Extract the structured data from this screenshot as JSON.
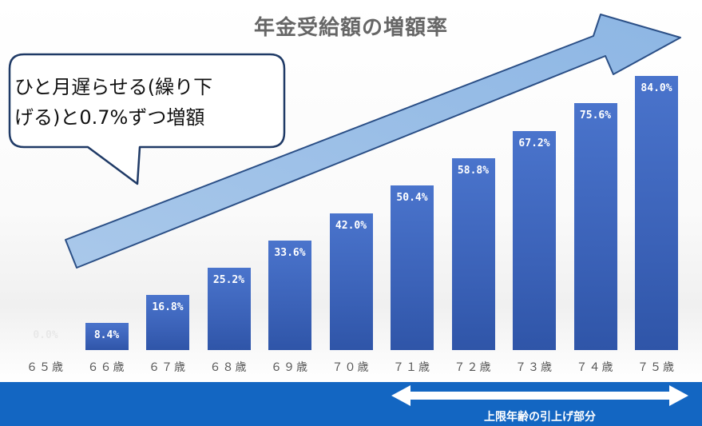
{
  "chart_data": {
    "type": "bar",
    "title": "年金受給額の増額率",
    "categories": [
      "６５歳",
      "６６歳",
      "６７歳",
      "６８歳",
      "６９歳",
      "７０歳",
      "７１歳",
      "７２歳",
      "７３歳",
      "７４歳",
      "７５歳"
    ],
    "values": [
      0.0,
      8.4,
      16.8,
      25.2,
      33.6,
      42.0,
      50.4,
      58.8,
      67.2,
      75.6,
      84.0
    ],
    "value_labels": [
      "0.0%",
      "8.4%",
      "16.8%",
      "25.2%",
      "33.6%",
      "42.0%",
      "50.4%",
      "58.8%",
      "67.2%",
      "75.6%",
      "84.0%"
    ],
    "xlabel": "",
    "ylabel": "",
    "ylim": [
      0,
      84.0
    ],
    "grid": false,
    "bar_color": "#3b62b8"
  },
  "callout": {
    "line1": "ひと月遅らせる(繰り下",
    "line2": "げる)と0.7%ずつ増額"
  },
  "footer": {
    "label": "上限年齢の引上げ部分",
    "background": "#1366c2"
  }
}
